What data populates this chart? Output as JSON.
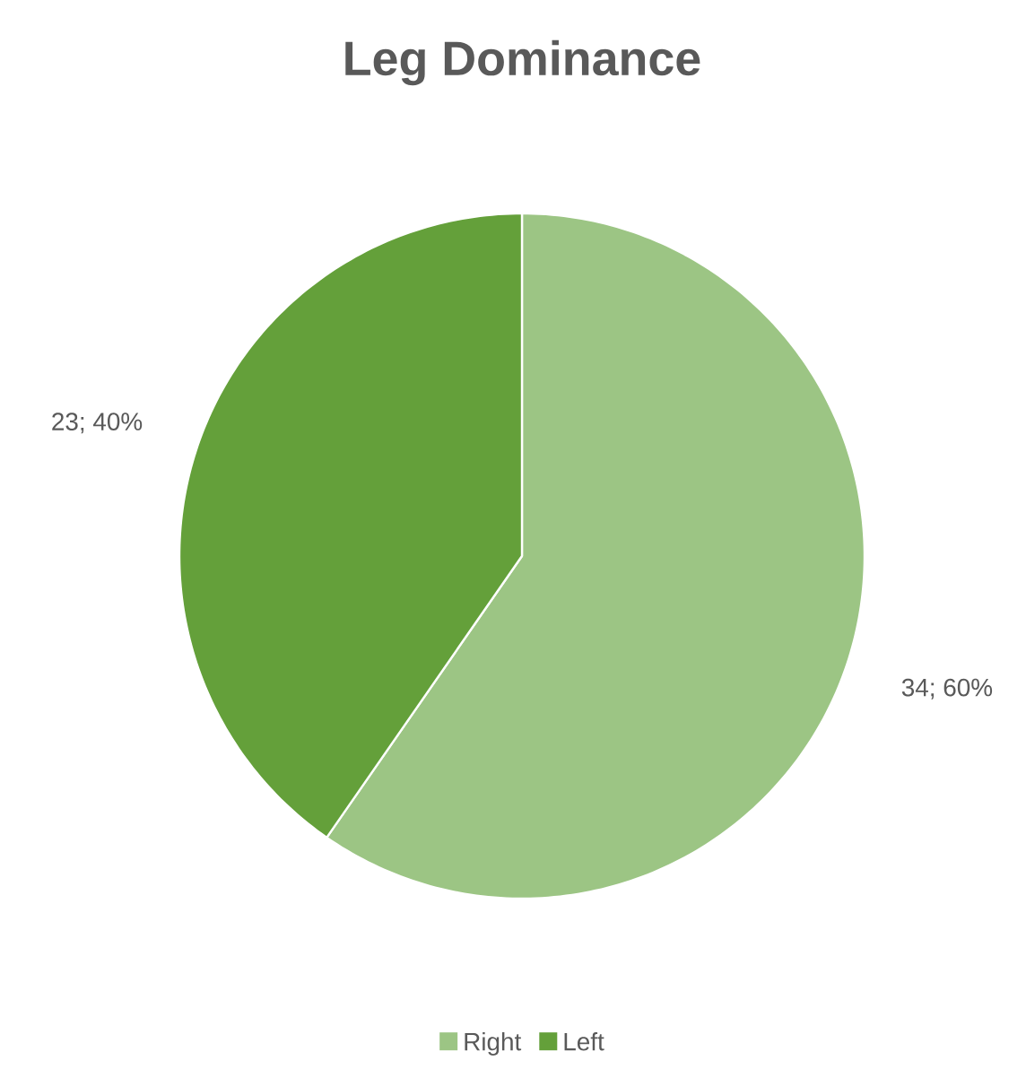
{
  "chart_data": {
    "type": "pie",
    "title": "Leg Dominance",
    "categories": [
      "Right",
      "Left"
    ],
    "values": [
      34,
      23
    ],
    "value_labels": [
      "34; 60%",
      "23; 40%"
    ],
    "colors": [
      "#9cc584",
      "#64a03a"
    ],
    "legend": "bottom"
  }
}
